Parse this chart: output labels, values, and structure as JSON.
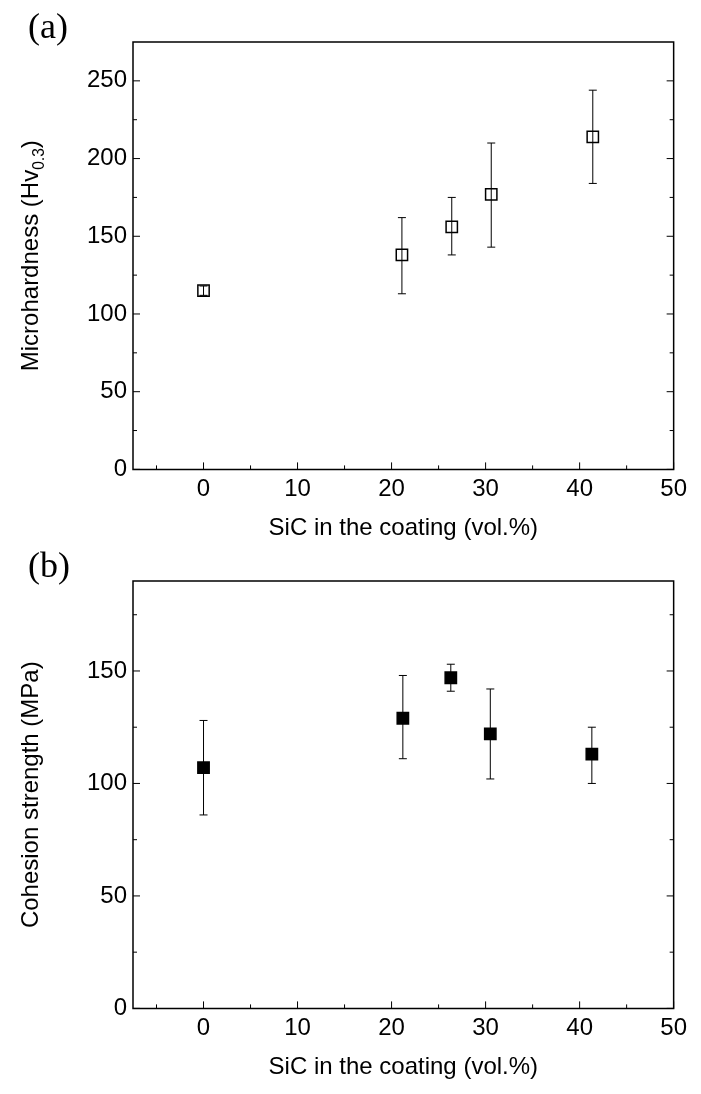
{
  "chart_data": [
    {
      "type": "scatter",
      "title": "(a)",
      "xlabel": "SiC in the coating (vol.%)",
      "ylabel": "Microhardness (Hv$_{0.3}$)",
      "xlim": [
        -7.5,
        50
      ],
      "xticks": [
        {
          "value": -5,
          "label": null
        },
        0,
        {
          "value": 5,
          "label": null
        },
        10,
        {
          "value": 15,
          "label": null
        },
        20,
        {
          "value": 25,
          "label": null
        },
        30,
        {
          "value": 35,
          "label": null
        },
        40,
        {
          "value": 45,
          "label": null
        },
        50
      ],
      "ylim": [
        0,
        275
      ],
      "yticks": [
        0,
        {
          "value": 25,
          "label": null
        },
        50,
        {
          "value": 75,
          "label": null
        },
        100,
        {
          "value": 125,
          "label": null
        },
        150,
        {
          "value": 175,
          "label": null
        },
        200,
        {
          "value": 225,
          "label": null
        },
        250
      ],
      "grid": false,
      "legend": false,
      "marker": "square",
      "series": [
        {
          "color": "#ffffff",
          "x": [
            0,
            21.1,
            26.4,
            30.6,
            41.4
          ],
          "values": [
            115,
            138,
            156,
            177,
            214
          ],
          "errors": [
            [
              112,
              118
            ],
            [
              113,
              162
            ],
            [
              138,
              175
            ],
            [
              143,
              210
            ],
            [
              184,
              244
            ]
          ]
        }
      ]
    },
    {
      "type": "scatter",
      "title": "(b)",
      "xlabel": "SiC in the coating (vol.%)",
      "ylabel": "Cohesion strength (MPa)",
      "xlim": [
        -7.5,
        50
      ],
      "xticks": [
        {
          "value": -5,
          "label": null
        },
        0,
        {
          "value": 5,
          "label": null
        },
        10,
        {
          "value": 15,
          "label": null
        },
        20,
        {
          "value": 25,
          "label": null
        },
        30,
        {
          "value": 35,
          "label": null
        },
        40,
        {
          "value": 45,
          "label": null
        },
        50
      ],
      "ylim": [
        0,
        190
      ],
      "yticks": [
        0,
        {
          "value": 25,
          "label": null
        },
        50,
        {
          "value": 75,
          "label": null
        },
        100,
        {
          "value": 125,
          "label": null
        },
        150,
        {
          "value": 175,
          "label": null
        }
      ],
      "grid": false,
      "legend": false,
      "marker": "square",
      "series": [
        {
          "color": "#000000",
          "x": [
            0,
            21.2,
            26.3,
            30.5,
            41.3
          ],
          "values": [
            107,
            129,
            147,
            122,
            113
          ],
          "errors": [
            [
              86,
              128
            ],
            [
              111,
              148
            ],
            [
              141,
              153
            ],
            [
              102,
              142
            ],
            [
              100,
              125
            ]
          ]
        }
      ]
    }
  ]
}
